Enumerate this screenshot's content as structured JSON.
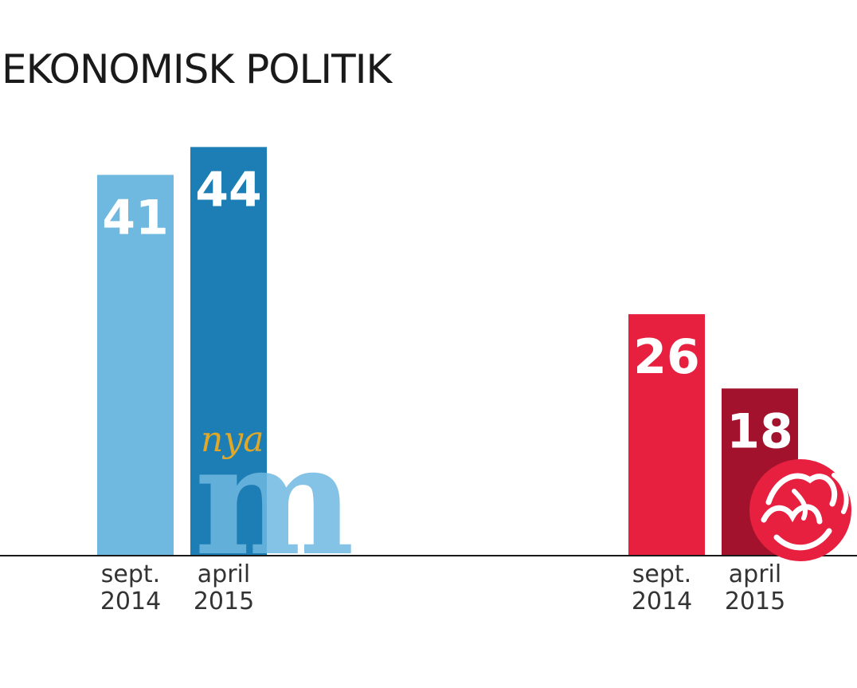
{
  "chart_data": {
    "type": "bar",
    "title": "EKONOMISK POLITIK",
    "ylim": [
      0,
      50
    ],
    "grid": false,
    "legend": "none",
    "groups": [
      {
        "bars": [
          {
            "label": "sept.\n2014",
            "value": 41,
            "color": "#6fb8e0"
          },
          {
            "label": "april\n2015",
            "value": 44,
            "color": "#1d7db5"
          }
        ]
      },
      {
        "bars": [
          {
            "label": "sept.\n2014",
            "value": 26,
            "color": "#e8203f"
          },
          {
            "label": "april\n2015",
            "value": 18,
            "color": "#a3122d"
          }
        ]
      }
    ]
  },
  "logos": {
    "moderaterna": {
      "icon": "nya-m-logo",
      "text_small": "nya",
      "text_big": "m",
      "color_small": "#e0a826",
      "color_big": "#6fb8e0"
    },
    "socialdemokraterna": {
      "icon": "rose-logo",
      "color": "#e8203f"
    }
  }
}
